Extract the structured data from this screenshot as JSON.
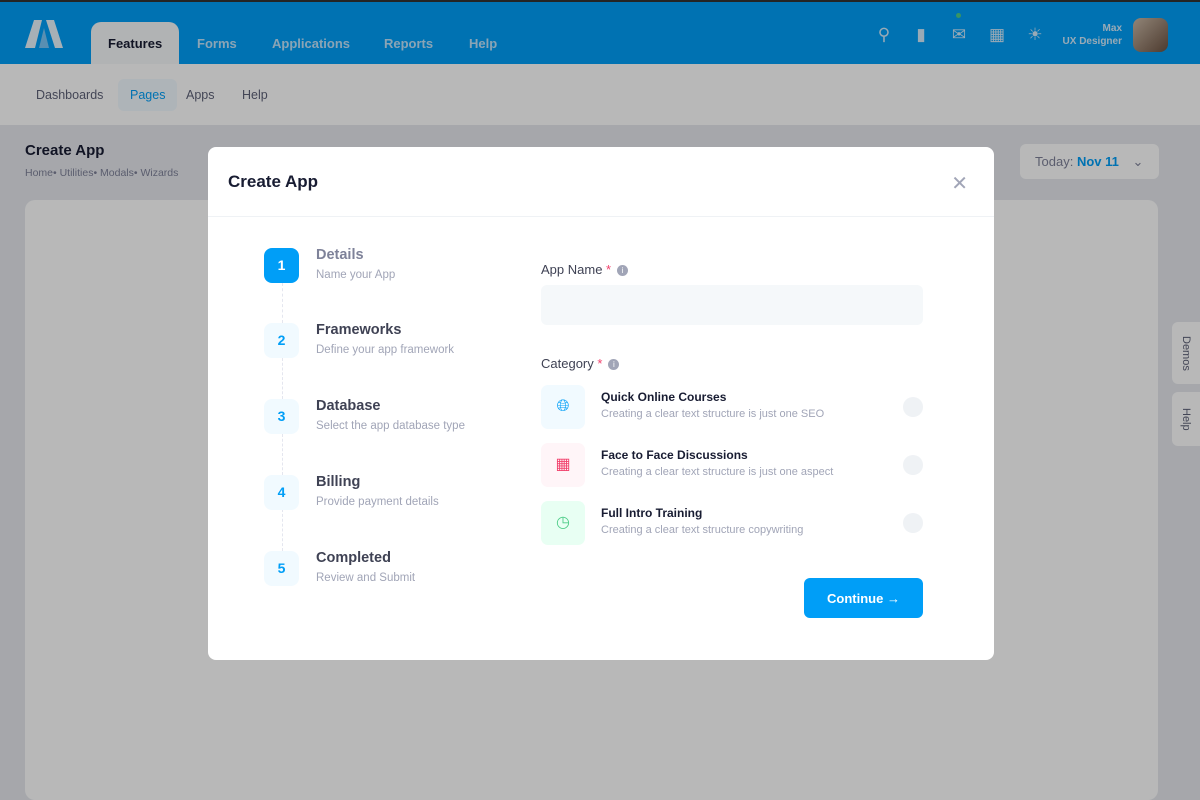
{
  "header": {
    "tabs": [
      "Features",
      "Forms",
      "Applications",
      "Reports",
      "Help"
    ],
    "user_name": "Max",
    "user_role": "UX Designer"
  },
  "subnav": [
    "Dashboards",
    "Pages",
    "Apps",
    "Help"
  ],
  "page": {
    "title": "Create App",
    "breadcrumbs": "Home•  Utilities•  Modals•  Wizards",
    "date_label": "Today:",
    "date_value": "Nov 11",
    "side_tabs": [
      "Demos",
      "Help"
    ]
  },
  "modal": {
    "title": "Create App",
    "steps": [
      {
        "num": "1",
        "title": "Details",
        "desc": "Name your App"
      },
      {
        "num": "2",
        "title": "Frameworks",
        "desc": "Define your app framework"
      },
      {
        "num": "3",
        "title": "Database",
        "desc": "Select the app database type"
      },
      {
        "num": "4",
        "title": "Billing",
        "desc": "Provide payment details"
      },
      {
        "num": "5",
        "title": "Completed",
        "desc": "Review and Submit"
      }
    ],
    "app_name_label": "App Name",
    "app_name_value": "",
    "category_label": "Category",
    "required_mark": "*",
    "options": [
      {
        "title": "Quick Online Courses",
        "desc": "Creating a clear text structure is just one SEO"
      },
      {
        "title": "Face to Face Discussions",
        "desc": "Creating a clear text structure is just one aspect"
      },
      {
        "title": "Full Intro Training",
        "desc": "Creating a clear text structure copywriting"
      }
    ],
    "continue_label": "Continue →"
  },
  "colors": {
    "primary": "#009ef7",
    "danger": "#f1416c",
    "success": "#50cd89"
  }
}
